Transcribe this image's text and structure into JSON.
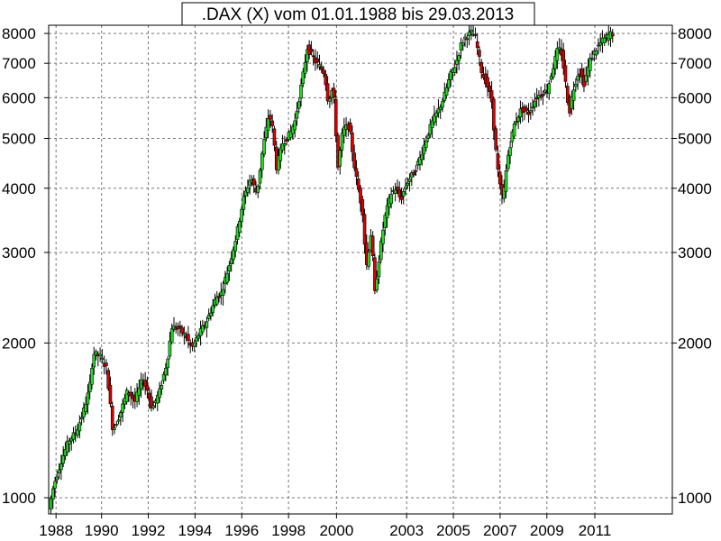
{
  "chart_data": {
    "type": "candlestick",
    "title": ".DAX (X) vom 01.01.1988 bis 29.03.2013",
    "xlabel": "",
    "ylabel": "",
    "y_scale": "log",
    "ylim": [
      930,
      8300
    ],
    "xlim": [
      1987.95,
      2013.3
    ],
    "y_ticks": [
      1000,
      2000,
      3000,
      4000,
      5000,
      6000,
      7000,
      8000
    ],
    "y_tick_labels": [
      "1000",
      "2000",
      "3000",
      "4000",
      "5000",
      "6000",
      "7000",
      "8000"
    ],
    "x_ticks": [
      1988,
      1990,
      1992,
      1994,
      1996,
      1998,
      2000,
      2003,
      2005,
      2007,
      2009,
      2011
    ],
    "x_tick_labels": [
      "1988",
      "1990",
      "1992",
      "1994",
      "1996",
      "1998",
      "2000",
      "2003",
      "2005",
      "2007",
      "2009",
      "2011"
    ],
    "x_tick_positions": [
      1988.25,
      1990.1,
      1992.0,
      1993.9,
      1995.8,
      1997.7,
      1999.65,
      2002.5,
      2004.4,
      2006.3,
      2008.2,
      2010.15
    ],
    "grid": true,
    "up_color": "#22dd22",
    "down_color": "#dd0000",
    "anchors": [
      [
        1988.0,
        950
      ],
      [
        1988.2,
        1060
      ],
      [
        1988.5,
        1180
      ],
      [
        1988.8,
        1290
      ],
      [
        1989.1,
        1340
      ],
      [
        1989.4,
        1470
      ],
      [
        1989.65,
        1630
      ],
      [
        1989.8,
        1910
      ],
      [
        1990.1,
        1880
      ],
      [
        1990.35,
        1780
      ],
      [
        1990.6,
        1350
      ],
      [
        1990.9,
        1460
      ],
      [
        1991.2,
        1620
      ],
      [
        1991.5,
        1540
      ],
      [
        1991.8,
        1700
      ],
      [
        1992.0,
        1620
      ],
      [
        1992.2,
        1490
      ],
      [
        1992.5,
        1610
      ],
      [
        1992.8,
        1840
      ],
      [
        1993.0,
        2150
      ],
      [
        1993.3,
        2130
      ],
      [
        1993.6,
        2050
      ],
      [
        1993.8,
        1950
      ],
      [
        1994.1,
        2080
      ],
      [
        1994.4,
        2200
      ],
      [
        1994.8,
        2450
      ],
      [
        1995.0,
        2500
      ],
      [
        1995.3,
        2800
      ],
      [
        1995.6,
        3200
      ],
      [
        1995.9,
        3800
      ],
      [
        1996.2,
        4200
      ],
      [
        1996.45,
        3900
      ],
      [
        1996.7,
        4800
      ],
      [
        1996.95,
        5600
      ],
      [
        1997.1,
        5200
      ],
      [
        1997.25,
        4400
      ],
      [
        1997.5,
        4900
      ],
      [
        1997.8,
        5100
      ],
      [
        1998.0,
        5400
      ],
      [
        1998.3,
        6500
      ],
      [
        1998.5,
        7500
      ],
      [
        1998.8,
        7100
      ],
      [
        1999.0,
        6900
      ],
      [
        1999.2,
        6700
      ],
      [
        1999.35,
        5900
      ],
      [
        1999.55,
        6300
      ],
      [
        1999.75,
        4400
      ],
      [
        1999.95,
        5200
      ],
      [
        2000.2,
        5300
      ],
      [
        2000.45,
        4300
      ],
      [
        2000.75,
        3600
      ],
      [
        2000.9,
        2800
      ],
      [
        2001.1,
        3300
      ],
      [
        2001.25,
        2500
      ],
      [
        2001.45,
        3000
      ],
      [
        2001.65,
        3500
      ],
      [
        2001.9,
        3900
      ],
      [
        2002.1,
        4000
      ],
      [
        2002.3,
        3800
      ],
      [
        2002.55,
        4100
      ],
      [
        2002.85,
        4300
      ],
      [
        2003.1,
        4600
      ],
      [
        2003.4,
        5100
      ],
      [
        2003.6,
        5400
      ],
      [
        2003.85,
        5700
      ],
      [
        2004.05,
        6000
      ],
      [
        2004.3,
        6600
      ],
      [
        2004.55,
        7000
      ],
      [
        2004.75,
        7600
      ],
      [
        2004.95,
        7900
      ],
      [
        2005.2,
        8050
      ],
      [
        2005.35,
        7800
      ],
      [
        2005.6,
        6700
      ],
      [
        2005.8,
        6400
      ],
      [
        2006.0,
        5900
      ],
      [
        2006.15,
        4800
      ],
      [
        2006.3,
        4100
      ],
      [
        2006.45,
        3800
      ],
      [
        2006.65,
        4600
      ],
      [
        2006.9,
        5300
      ],
      [
        2007.2,
        5700
      ],
      [
        2007.5,
        5600
      ],
      [
        2007.8,
        6000
      ],
      [
        2008.0,
        6100
      ],
      [
        2008.25,
        6200
      ],
      [
        2008.5,
        6900
      ],
      [
        2008.7,
        7500
      ],
      [
        2008.85,
        7300
      ],
      [
        2009.0,
        6400
      ],
      [
        2009.15,
        5600
      ],
      [
        2009.3,
        6200
      ],
      [
        2009.55,
        6800
      ],
      [
        2009.75,
        6400
      ],
      [
        2010.0,
        7100
      ],
      [
        2010.2,
        7400
      ],
      [
        2010.45,
        7700
      ],
      [
        2010.7,
        7900
      ],
      [
        2010.85,
        8000
      ]
    ]
  }
}
